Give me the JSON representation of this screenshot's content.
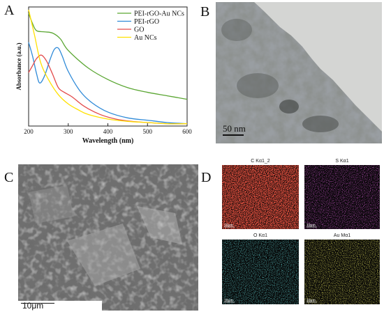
{
  "panels": {
    "a": {
      "letter": "A"
    },
    "b": {
      "letter": "B"
    },
    "c": {
      "letter": "C"
    },
    "d": {
      "letter": "D"
    }
  },
  "chart_data": {
    "type": "line",
    "title": "",
    "xlabel": "Wavelength (nm)",
    "ylabel": "Absorbance (a.u.)",
    "xlim": [
      200,
      600
    ],
    "xticks": [
      "200",
      "300",
      "400",
      "500",
      "600"
    ],
    "legend_position": "top-right",
    "series": [
      {
        "name": "PEI-rGO-Au NCs",
        "color": "#5aa632",
        "x": [
          200,
          210,
          220,
          240,
          260,
          280,
          300,
          350,
          400,
          450,
          500,
          550,
          600
        ],
        "y": [
          0.97,
          0.88,
          0.82,
          0.81,
          0.8,
          0.75,
          0.65,
          0.5,
          0.4,
          0.33,
          0.29,
          0.26,
          0.23
        ]
      },
      {
        "name": "PEI-rGO",
        "color": "#2f8ad8",
        "x": [
          200,
          210,
          220,
          228,
          240,
          255,
          265,
          275,
          285,
          300,
          330,
          360,
          400,
          450,
          500,
          550,
          600
        ],
        "y": [
          0.72,
          0.6,
          0.45,
          0.37,
          0.43,
          0.58,
          0.66,
          0.67,
          0.6,
          0.47,
          0.3,
          0.2,
          0.12,
          0.07,
          0.05,
          0.03,
          0.02
        ]
      },
      {
        "name": "GO",
        "color": "#e34a4a",
        "x": [
          200,
          210,
          220,
          232,
          245,
          260,
          275,
          290,
          310,
          340,
          380,
          420,
          460,
          500,
          550,
          600
        ],
        "y": [
          0.46,
          0.52,
          0.58,
          0.61,
          0.56,
          0.45,
          0.33,
          0.29,
          0.25,
          0.17,
          0.1,
          0.06,
          0.04,
          0.03,
          0.02,
          0.02
        ]
      },
      {
        "name": "Au NCs",
        "color": "#ffe100",
        "x": [
          200,
          215,
          230,
          250,
          275,
          300,
          325,
          350,
          400,
          450,
          500,
          550,
          600
        ],
        "y": [
          1.0,
          0.78,
          0.55,
          0.4,
          0.27,
          0.19,
          0.14,
          0.1,
          0.06,
          0.04,
          0.03,
          0.02,
          0.02
        ]
      }
    ]
  },
  "tem": {
    "scale": "50 nm"
  },
  "sem": {
    "scale": "10μm"
  },
  "eds": {
    "maps": [
      {
        "title": "C Kα1_2",
        "color": "#ff1a10",
        "scale": "10μm"
      },
      {
        "title": "S Kα1",
        "color": "#d420d4",
        "scale": "10μm"
      },
      {
        "title": "O Kα1",
        "color": "#26c6c6",
        "scale": "10μm"
      },
      {
        "title": "Au Mα1",
        "color": "#e6e020",
        "scale": "10μm"
      }
    ]
  }
}
